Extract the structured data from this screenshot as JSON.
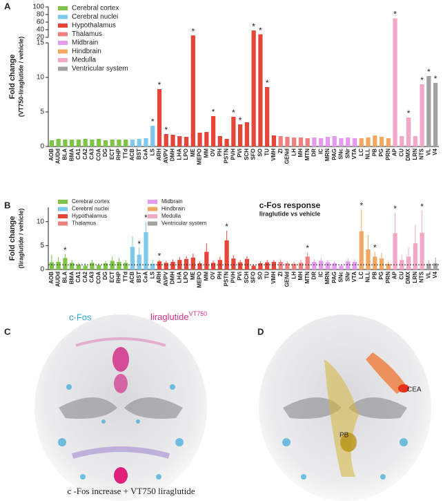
{
  "chart_data": [
    {
      "type": "bar",
      "panel": "A",
      "ylabel": "Fold change",
      "ylabel_sub": "(VT750-liraglutide / vehicle)",
      "significance_mark": "*",
      "ylim": [
        0,
        100
      ],
      "ybreak": [
        15,
        20
      ],
      "yticks": [
        0,
        5,
        10,
        15,
        20,
        40,
        60,
        80,
        100
      ],
      "series": [
        {
          "name": "Cerebral cortex",
          "color": "#7cc547",
          "categories": [
            "AOB",
            "AUDd",
            "BLA",
            "BMA",
            "CA1",
            "CA2",
            "CA3",
            "COA",
            "DG",
            "ECT",
            "RHP",
            "TTd"
          ],
          "values": [
            0.9,
            1.1,
            1.0,
            1.0,
            1.0,
            1.1,
            1.0,
            1.1,
            0.9,
            1.0,
            1.0,
            1.0
          ],
          "significant": [
            false,
            false,
            false,
            false,
            false,
            false,
            false,
            false,
            false,
            false,
            false,
            false
          ]
        },
        {
          "name": "Cerebral nuclei",
          "color": "#7ec8ec",
          "categories": [
            "ACB",
            "BST",
            "CeA",
            "LS"
          ],
          "values": [
            1.0,
            1.1,
            1.2,
            3.0
          ],
          "significant": [
            false,
            false,
            false,
            true
          ]
        },
        {
          "name": "Hypothalamus",
          "color": "#e6463a",
          "categories": [
            "ARH",
            "AVPV",
            "DMH",
            "LHA",
            "LPO",
            "ME",
            "MEPO",
            "MM",
            "OV",
            "PH",
            "PSTN",
            "PVH",
            "PVi",
            "SCH",
            "SFO",
            "SO",
            "TU",
            "VMH"
          ],
          "values": [
            8.3,
            1.8,
            1.7,
            1.5,
            1.4,
            25,
            2.0,
            2.1,
            4.4,
            1.5,
            1.1,
            4.3,
            3.2,
            3.5,
            38,
            28,
            8.6,
            1.6
          ],
          "significant": [
            true,
            true,
            false,
            false,
            false,
            true,
            false,
            false,
            true,
            false,
            false,
            true,
            true,
            false,
            true,
            true,
            true,
            false
          ]
        },
        {
          "name": "Thalamus",
          "color": "#ef8080",
          "categories": [
            "ZI",
            "GENd",
            "LH",
            "MH",
            "MTN"
          ],
          "values": [
            1.5,
            1.4,
            1.3,
            1.3,
            1.2
          ],
          "significant": [
            false,
            false,
            false,
            false,
            false
          ]
        },
        {
          "name": "Midbrain",
          "color": "#e59af0",
          "categories": [
            "DR",
            "IC",
            "MRN",
            "PAG",
            "SNc",
            "SNr",
            "VTA"
          ],
          "values": [
            1.3,
            1.2,
            1.4,
            1.5,
            1.2,
            1.3,
            1.2
          ],
          "significant": [
            false,
            false,
            false,
            false,
            false,
            false,
            false
          ]
        },
        {
          "name": "Hindbrain",
          "color": "#f2a862",
          "categories": [
            "LC",
            "NLL",
            "PB",
            "PG",
            "PRN"
          ],
          "values": [
            1.2,
            1.3,
            1.6,
            1.4,
            1.2
          ],
          "significant": [
            false,
            false,
            false,
            false,
            false
          ]
        },
        {
          "name": "Medulla",
          "color": "#f3a8c8",
          "categories": [
            "AP",
            "CU",
            "DMX",
            "LRN",
            "NTS"
          ],
          "values": [
            70,
            1.5,
            4.2,
            1.5,
            9.0
          ],
          "significant": [
            true,
            false,
            true,
            false,
            true
          ]
        },
        {
          "name": "Ventricular system",
          "color": "#a3a3a3",
          "categories": [
            "VL",
            "V4"
          ],
          "values": [
            10.2,
            9.2
          ],
          "significant": [
            true,
            true
          ]
        }
      ]
    },
    {
      "type": "bar",
      "panel": "B",
      "title": "c-Fos response",
      "subtitle": "liraglutide vs vehicle",
      "ylabel": "Fold change",
      "ylabel_sub": "(liraglutide / vehicle)",
      "significance_mark": "*",
      "ylim": [
        0,
        13
      ],
      "yticks": [
        0,
        5,
        10
      ],
      "reference_line": 1,
      "series": [
        {
          "name": "Cerebral cortex",
          "color": "#7cc547",
          "categories": [
            "AOB",
            "AUDd",
            "BLA",
            "BMA",
            "CA1",
            "CA2",
            "CA3",
            "COA",
            "DG",
            "ECT",
            "RHP",
            "TTd"
          ],
          "values": [
            1.5,
            1.6,
            2.4,
            1.4,
            1.0,
            0.8,
            1.4,
            0.9,
            1.3,
            1.8,
            1.6,
            1.4
          ],
          "errors": [
            1.6,
            1.0,
            0.8,
            0.6,
            0.4,
            0.5,
            0.6,
            0.4,
            0.5,
            0.9,
            0.7,
            0.6
          ],
          "significant": [
            false,
            false,
            true,
            false,
            false,
            false,
            false,
            false,
            false,
            false,
            false,
            false
          ]
        },
        {
          "name": "Cerebral nuclei",
          "color": "#7ec8ec",
          "categories": [
            "ACB",
            "BST",
            "CeA",
            "LS"
          ],
          "values": [
            4.7,
            3.1,
            7.8,
            1.2
          ],
          "errors": [
            2.3,
            1.4,
            2.2,
            0.9
          ],
          "significant": [
            false,
            true,
            true,
            false
          ]
        },
        {
          "name": "Hypothalamus",
          "color": "#e6463a",
          "categories": [
            "ARH",
            "AVPV",
            "DMH",
            "LHA",
            "LPO",
            "ME",
            "MEPO",
            "MM",
            "OV",
            "PH",
            "PSTN",
            "PVH",
            "PVi",
            "SCH",
            "SFO",
            "SO",
            "TU",
            "VMH"
          ],
          "values": [
            1.7,
            1.4,
            1.6,
            2.0,
            2.2,
            2.5,
            1.3,
            3.7,
            1.4,
            2.0,
            6.1,
            2.3,
            1.5,
            2.2,
            0.8,
            1.3,
            1.5,
            1.6
          ],
          "errors": [
            0.3,
            0.4,
            0.5,
            0.6,
            0.6,
            0.8,
            0.4,
            1.8,
            0.5,
            0.7,
            2.0,
            0.7,
            0.5,
            0.6,
            0.3,
            0.4,
            0.5,
            0.4
          ],
          "significant": [
            true,
            false,
            false,
            false,
            false,
            false,
            false,
            false,
            false,
            false,
            true,
            false,
            false,
            false,
            false,
            false,
            false,
            false
          ]
        },
        {
          "name": "Thalamus",
          "color": "#ef8080",
          "categories": [
            "ZI",
            "GENd",
            "LH",
            "MH",
            "MTN"
          ],
          "values": [
            1.6,
            1.3,
            1.2,
            1.4,
            2.7
          ],
          "errors": [
            0.5,
            0.4,
            0.4,
            0.6,
            0.9
          ],
          "significant": [
            false,
            false,
            false,
            false,
            true
          ]
        },
        {
          "name": "Midbrain",
          "color": "#e59af0",
          "categories": [
            "DR",
            "IC",
            "MRN",
            "PAG",
            "SNc",
            "SNr",
            "VTA"
          ],
          "values": [
            1.6,
            1.8,
            1.5,
            1.3,
            0.8,
            1.7,
            1.6
          ],
          "errors": [
            0.5,
            0.6,
            0.5,
            0.4,
            0.3,
            0.6,
            0.5
          ],
          "significant": [
            false,
            false,
            false,
            false,
            false,
            false,
            false
          ]
        },
        {
          "name": "Hindbrain",
          "color": "#f2a862",
          "categories": [
            "LC",
            "NLL",
            "PB",
            "PG",
            "PRN"
          ],
          "values": [
            8.0,
            4.2,
            2.7,
            2.3,
            1.2
          ],
          "errors": [
            4.5,
            3.0,
            1.0,
            1.2,
            0.5
          ],
          "significant": [
            true,
            false,
            true,
            false,
            false
          ]
        },
        {
          "name": "Medulla",
          "color": "#f3a8c8",
          "categories": [
            "AP",
            "CU",
            "DMX",
            "LRN",
            "NTS"
          ],
          "values": [
            7.6,
            2.0,
            2.7,
            5.5,
            7.7
          ],
          "errors": [
            4.3,
            1.0,
            2.0,
            3.8,
            4.6
          ],
          "significant": [
            true,
            false,
            false,
            false,
            true
          ]
        },
        {
          "name": "Ventricular system",
          "color": "#a3a3a3",
          "categories": [
            "VL",
            "V4"
          ],
          "values": [
            1.2,
            1.3
          ],
          "errors": [
            0.7,
            1.2
          ],
          "significant": [
            false,
            false
          ]
        }
      ]
    }
  ],
  "images": {
    "C": {
      "letter": "C",
      "label_left": "c-Fos",
      "label_right": "liraglutide",
      "superscript": "VT750",
      "caption": "c -Fos increase + VT750 liraglutide"
    },
    "D": {
      "letter": "D",
      "label_cea": "CEA",
      "label_pb": "PB"
    }
  }
}
